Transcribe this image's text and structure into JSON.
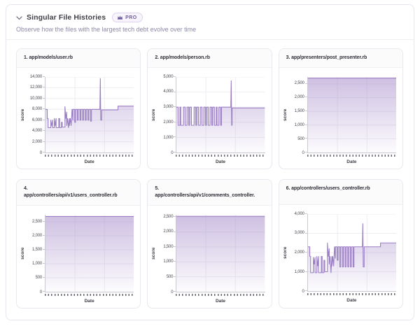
{
  "header": {
    "title": "Singular File Histories",
    "badge_label": "PRO",
    "subtitle": "Observe how the files with the largest tech debt evolve over time"
  },
  "chart_style": {
    "line_color": "#9b7ec4",
    "fill_color": "#a58bc9",
    "fill_opacity_top": 0.55,
    "grid_color": "#ededf2",
    "axis_color": "#c9c9d1",
    "tick_text_color": "#46464f",
    "x_dash_color": "#6a6a72",
    "legend": "none",
    "grid": true
  },
  "chart_data": [
    {
      "type": "area",
      "title_lines": [
        "1. app/models/user.rb"
      ],
      "xlabel": "Date",
      "ylabel": "score",
      "ylim": [
        0,
        14000
      ],
      "ymax": 14000,
      "yticks": [
        {
          "value": 0,
          "label": "0"
        },
        {
          "value": 2000,
          "label": "2,000"
        },
        {
          "value": 4000,
          "label": "4,000"
        },
        {
          "value": 6000,
          "label": "6,000"
        },
        {
          "value": 8000,
          "label": "8,000"
        },
        {
          "value": 10000,
          "label": "10,000"
        },
        {
          "value": 12000,
          "label": "12,000"
        },
        {
          "value": 14000,
          "label": "14,000"
        }
      ],
      "points": [
        [
          0,
          8000
        ],
        [
          2,
          8000
        ],
        [
          2,
          6300
        ],
        [
          3,
          6300
        ],
        [
          3,
          4600
        ],
        [
          6,
          4600
        ],
        [
          6,
          6000
        ],
        [
          7,
          5000
        ],
        [
          8,
          6000
        ],
        [
          8,
          4600
        ],
        [
          10,
          4600
        ],
        [
          10,
          6300
        ],
        [
          11,
          5000
        ],
        [
          12,
          6300
        ],
        [
          12,
          4600
        ],
        [
          15,
          4600
        ],
        [
          15,
          6300
        ],
        [
          16,
          6300
        ],
        [
          16,
          4600
        ],
        [
          18,
          4600
        ],
        [
          18,
          5600
        ],
        [
          19,
          5600
        ],
        [
          19,
          4700
        ],
        [
          22,
          4700
        ],
        [
          22,
          8500
        ],
        [
          23,
          6300
        ],
        [
          24,
          7500
        ],
        [
          24,
          5000
        ],
        [
          25,
          6300
        ],
        [
          26,
          4600
        ],
        [
          27,
          6300
        ],
        [
          27,
          5000
        ],
        [
          28,
          6300
        ],
        [
          29,
          5000
        ],
        [
          30,
          8000
        ],
        [
          31,
          6000
        ],
        [
          31,
          8000
        ],
        [
          33,
          8000
        ],
        [
          33,
          5600
        ],
        [
          34,
          5600
        ],
        [
          34,
          8000
        ],
        [
          36,
          8000
        ],
        [
          36,
          6000
        ],
        [
          37,
          6000
        ],
        [
          37,
          8000
        ],
        [
          39,
          8000
        ],
        [
          39,
          6000
        ],
        [
          40,
          6000
        ],
        [
          40,
          8000
        ],
        [
          42,
          8000
        ],
        [
          42,
          6000
        ],
        [
          43,
          6000
        ],
        [
          43,
          8000
        ],
        [
          45,
          8000
        ],
        [
          45,
          6000
        ],
        [
          46,
          6000
        ],
        [
          46,
          8000
        ],
        [
          48,
          8000
        ],
        [
          48,
          6000
        ],
        [
          49,
          6000
        ],
        [
          49,
          8000
        ],
        [
          51,
          8000
        ],
        [
          51,
          5800
        ],
        [
          52,
          5800
        ],
        [
          52,
          8000
        ],
        [
          61.5,
          8000
        ],
        [
          62,
          13700
        ],
        [
          62.5,
          6000
        ],
        [
          63.5,
          6000
        ],
        [
          63.5,
          7900
        ],
        [
          82,
          7900
        ],
        [
          82,
          8600
        ],
        [
          100,
          8600
        ]
      ]
    },
    {
      "type": "area",
      "title_lines": [
        "2. app/models/person.rb"
      ],
      "xlabel": "Date",
      "ylabel": "score",
      "ylim": [
        0,
        5000
      ],
      "ymax": 5000,
      "yticks": [
        {
          "value": 0,
          "label": "0"
        },
        {
          "value": 1000,
          "label": "1,000"
        },
        {
          "value": 2000,
          "label": "2,000"
        },
        {
          "value": 3000,
          "label": "3,000"
        },
        {
          "value": 4000,
          "label": "4,000"
        },
        {
          "value": 5000,
          "label": "5,000"
        }
      ],
      "points": [
        [
          0,
          3000
        ],
        [
          2,
          3000
        ],
        [
          2,
          1800
        ],
        [
          4,
          1800
        ],
        [
          4,
          3000
        ],
        [
          5,
          3000
        ],
        [
          5,
          1800
        ],
        [
          8,
          1800
        ],
        [
          8,
          3000
        ],
        [
          10,
          3000
        ],
        [
          10,
          1800
        ],
        [
          12,
          1800
        ],
        [
          12,
          3000
        ],
        [
          14,
          3000
        ],
        [
          14,
          1800
        ],
        [
          15,
          1800
        ],
        [
          15,
          3000
        ],
        [
          17,
          3000
        ],
        [
          17,
          1800
        ],
        [
          20,
          1800
        ],
        [
          20,
          3000
        ],
        [
          22,
          3000
        ],
        [
          22,
          1800
        ],
        [
          23,
          1800
        ],
        [
          23,
          3000
        ],
        [
          25,
          3000
        ],
        [
          25,
          1800
        ],
        [
          27,
          1800
        ],
        [
          27,
          3000
        ],
        [
          29,
          3000
        ],
        [
          29,
          1800
        ],
        [
          31,
          1800
        ],
        [
          31,
          3000
        ],
        [
          33,
          3000
        ],
        [
          33,
          1800
        ],
        [
          34,
          1800
        ],
        [
          34,
          3000
        ],
        [
          36,
          3000
        ],
        [
          36,
          1800
        ],
        [
          38,
          1800
        ],
        [
          38,
          3000
        ],
        [
          40,
          3000
        ],
        [
          40,
          1800
        ],
        [
          41,
          1800
        ],
        [
          41,
          3000
        ],
        [
          43,
          3000
        ],
        [
          43,
          1800
        ],
        [
          45,
          1800
        ],
        [
          45,
          3000
        ],
        [
          46,
          3000
        ],
        [
          46,
          1800
        ],
        [
          48,
          1800
        ],
        [
          48,
          3000
        ],
        [
          50,
          3000
        ],
        [
          50,
          1800
        ],
        [
          51,
          1800
        ],
        [
          51,
          3000
        ],
        [
          53,
          3000
        ],
        [
          61.5,
          3000
        ],
        [
          62,
          4750
        ],
        [
          62.5,
          1800
        ],
        [
          63,
          1800
        ],
        [
          63,
          2950
        ],
        [
          100,
          2950
        ]
      ]
    },
    {
      "type": "area",
      "title_lines": [
        "3. app/presenters/post_presenter.rb"
      ],
      "xlabel": "Date",
      "ylabel": "score",
      "ylim": [
        0,
        2750
      ],
      "ymax": 2750,
      "yticks": [
        {
          "value": 0,
          "label": "0"
        },
        {
          "value": 500,
          "label": "500"
        },
        {
          "value": 1000,
          "label": "1,000"
        },
        {
          "value": 1500,
          "label": "1,500"
        },
        {
          "value": 2000,
          "label": "2,000"
        },
        {
          "value": 2500,
          "label": "2,500"
        }
      ],
      "points": [
        [
          0,
          2710
        ],
        [
          100,
          2710
        ]
      ]
    },
    {
      "type": "area",
      "title_lines": [
        "4.",
        "app/controllers/api/v1/users_controller.rb"
      ],
      "xlabel": "Date",
      "ylabel": "score",
      "ylim": [
        0,
        2750
      ],
      "ymax": 2750,
      "yticks": [
        {
          "value": 0,
          "label": "0"
        },
        {
          "value": 500,
          "label": "500"
        },
        {
          "value": 1000,
          "label": "1,000"
        },
        {
          "value": 1500,
          "label": "1,500"
        },
        {
          "value": 2000,
          "label": "2,000"
        },
        {
          "value": 2500,
          "label": "2,500"
        }
      ],
      "points": [
        [
          0,
          2690
        ],
        [
          100,
          2690
        ]
      ]
    },
    {
      "type": "area",
      "title_lines": [
        "5.",
        "app/controllers/api/v1/comments_controller."
      ],
      "xlabel": "Date",
      "ylabel": "score",
      "ylim": [
        0,
        2580
      ],
      "ymax": 2580,
      "yticks": [
        {
          "value": 0,
          "label": "0"
        },
        {
          "value": 500,
          "label": "500"
        },
        {
          "value": 1000,
          "label": "1,000"
        },
        {
          "value": 1500,
          "label": "1,500"
        },
        {
          "value": 2000,
          "label": "2,000"
        },
        {
          "value": 2500,
          "label": "2,500"
        }
      ],
      "points": [
        [
          0,
          2530
        ],
        [
          100,
          2530
        ]
      ]
    },
    {
      "type": "area",
      "title_lines": [
        "6. app/controllers/users_controller.rb"
      ],
      "xlabel": "Date",
      "ylabel": "score",
      "ylim": [
        0,
        4000
      ],
      "ymax": 4000,
      "yticks": [
        {
          "value": 0,
          "label": "0"
        },
        {
          "value": 1000,
          "label": "1,000"
        },
        {
          "value": 2000,
          "label": "2,000"
        },
        {
          "value": 3000,
          "label": "3,000"
        },
        {
          "value": 4000,
          "label": "4,000"
        }
      ],
      "points": [
        [
          0,
          2300
        ],
        [
          2,
          2300
        ],
        [
          2,
          1800
        ],
        [
          3,
          1800
        ],
        [
          3,
          950
        ],
        [
          6,
          950
        ],
        [
          6,
          1750
        ],
        [
          7,
          1400
        ],
        [
          8,
          1750
        ],
        [
          8,
          950
        ],
        [
          10,
          950
        ],
        [
          10,
          1800
        ],
        [
          11,
          1300
        ],
        [
          12,
          1800
        ],
        [
          12,
          950
        ],
        [
          15,
          950
        ],
        [
          15,
          1800
        ],
        [
          16,
          1800
        ],
        [
          16,
          950
        ],
        [
          18,
          950
        ],
        [
          18,
          1600
        ],
        [
          19,
          1600
        ],
        [
          19,
          1000
        ],
        [
          22,
          1000
        ],
        [
          22,
          2500
        ],
        [
          23,
          1800
        ],
        [
          24,
          2200
        ],
        [
          24,
          1400
        ],
        [
          25,
          1800
        ],
        [
          26,
          950
        ],
        [
          27,
          1800
        ],
        [
          27,
          1300
        ],
        [
          28,
          1800
        ],
        [
          29,
          1300
        ],
        [
          30,
          2300
        ],
        [
          31,
          1700
        ],
        [
          31,
          2300
        ],
        [
          33,
          2300
        ],
        [
          33,
          1600
        ],
        [
          34,
          1600
        ],
        [
          34,
          2300
        ],
        [
          36,
          2300
        ],
        [
          36,
          1250
        ],
        [
          37,
          1250
        ],
        [
          37,
          2300
        ],
        [
          39,
          2300
        ],
        [
          39,
          1250
        ],
        [
          40,
          1250
        ],
        [
          40,
          2300
        ],
        [
          42,
          2300
        ],
        [
          42,
          1250
        ],
        [
          43,
          1250
        ],
        [
          43,
          2300
        ],
        [
          45,
          2300
        ],
        [
          45,
          1250
        ],
        [
          46,
          1250
        ],
        [
          46,
          2300
        ],
        [
          48,
          2300
        ],
        [
          48,
          1250
        ],
        [
          49,
          1250
        ],
        [
          49,
          2300
        ],
        [
          51,
          2300
        ],
        [
          51,
          1250
        ],
        [
          52,
          1250
        ],
        [
          52,
          2300
        ],
        [
          61.5,
          2300
        ],
        [
          62,
          3500
        ],
        [
          62.5,
          1250
        ],
        [
          63.5,
          1250
        ],
        [
          63.5,
          2300
        ],
        [
          82,
          2300
        ],
        [
          82,
          2500
        ],
        [
          100,
          2500
        ]
      ]
    }
  ]
}
